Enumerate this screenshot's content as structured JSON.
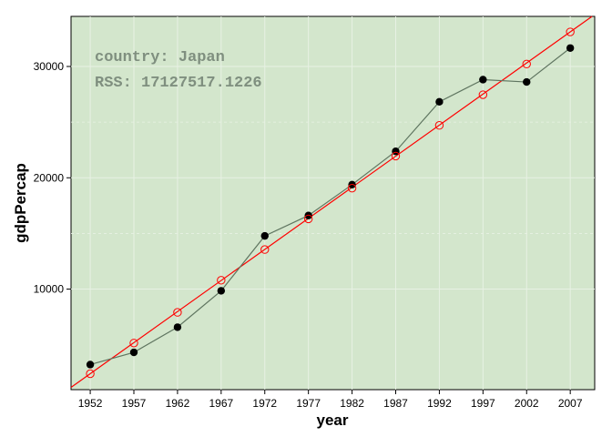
{
  "colors": {
    "panel_bg": "#d3e6cc",
    "grid": "#e8f1e4",
    "observed_line": "#5f7560",
    "observed_points": "#000000",
    "fit_line": "#ff0000",
    "fit_points": "#ff0000",
    "annotation": "#7f8f7f"
  },
  "chart_data": {
    "type": "line",
    "xlabel": "year",
    "ylabel": "gdpPercap",
    "xlim": [
      1949.8,
      2009.8
    ],
    "ylim": [
      966,
      34500
    ],
    "x_ticks": [
      1952,
      1957,
      1962,
      1967,
      1972,
      1977,
      1982,
      1987,
      1992,
      1997,
      2002,
      2007
    ],
    "y_ticks": [
      10000,
      20000,
      30000
    ],
    "grid": true,
    "annotations": [
      "country: Japan",
      "RSS: 17127517.1226"
    ],
    "series": [
      {
        "style": "line+filled-points",
        "x": [
          1952,
          1957,
          1962,
          1967,
          1972,
          1977,
          1982,
          1987,
          1992,
          1997,
          2002,
          2007
        ],
        "values": [
          3217,
          4318,
          6577,
          9848,
          14779,
          16610,
          19384,
          22376,
          26825,
          28817,
          28605,
          31656
        ]
      },
      {
        "style": "line+open-points",
        "x": [
          1952,
          1957,
          1962,
          1967,
          1972,
          1977,
          1982,
          1987,
          1992,
          1997,
          2002,
          2007
        ],
        "values": [
          2398,
          5155,
          7912,
          10796,
          13553,
          16310,
          19067,
          21951,
          24708,
          27465,
          30222,
          33106
        ]
      }
    ]
  }
}
